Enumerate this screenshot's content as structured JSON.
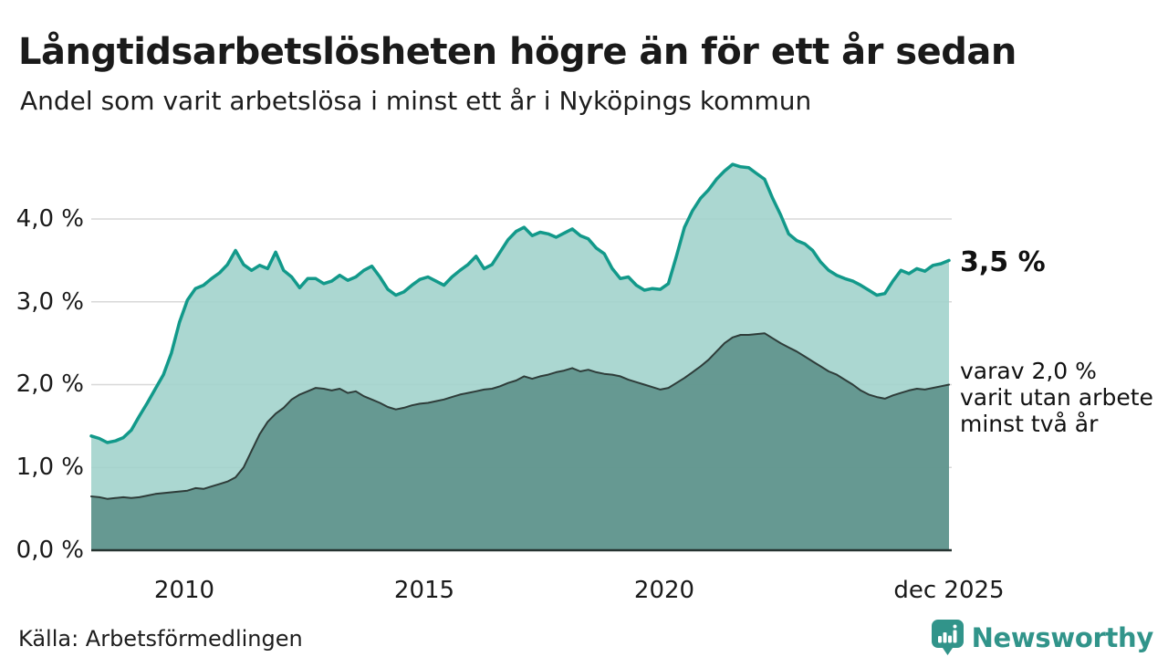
{
  "header": {
    "title": "Långtidsarbetslösheten högre än för ett år sedan",
    "subtitle": "Andel som varit arbetslösa i minst ett år i Nyköpings kommun"
  },
  "footer": {
    "source": "Källa: Arbetsförmedlingen",
    "brand": "Newsworthy",
    "brand_color": "#31948a",
    "brand_icon": "bar-chart-speech-bubble-icon"
  },
  "chart_data": {
    "type": "area",
    "title": "Långtidsarbetslösheten högre än för ett år sedan",
    "subtitle": "Andel som varit arbetslösa i minst ett år i Nyköpings kommun",
    "unit": "%",
    "grid": "horizontal",
    "legend_position": "right-annotations",
    "ylim": [
      0,
      4.7
    ],
    "x_domain_years": [
      2008.083,
      2025.917
    ],
    "x_resolution": "every 2 months",
    "y_ticks": [
      {
        "label": "4,0 %",
        "value": 4.0
      },
      {
        "label": "3,0 %",
        "value": 3.0
      },
      {
        "label": "2,0 %",
        "value": 2.0
      },
      {
        "label": "1,0 %",
        "value": 1.0
      },
      {
        "label": "0,0 %",
        "value": 0.0
      }
    ],
    "x_ticks": [
      {
        "label": "2010",
        "value": 2010
      },
      {
        "label": "2015",
        "value": 2015
      },
      {
        "label": "2020",
        "value": 2020
      },
      {
        "label": "dec 2025",
        "value": 2025.917
      }
    ],
    "colors": {
      "gridline": "#d8d8d8",
      "axis_line": "#263330"
    },
    "series": [
      {
        "name": "Arbetslösa minst ett år",
        "end_label": "3,5 %",
        "end_value": 3.5,
        "line_color": "#12998a",
        "fill_color": "#9fd2cb",
        "line_width": 3.5,
        "x_start": 2008.083,
        "x_step": 0.16667,
        "values": [
          1.38,
          1.35,
          1.3,
          1.32,
          1.36,
          1.45,
          1.62,
          1.78,
          1.95,
          2.12,
          2.38,
          2.75,
          3.02,
          3.16,
          3.2,
          3.28,
          3.35,
          3.45,
          3.62,
          3.45,
          3.38,
          3.44,
          3.4,
          3.6,
          3.38,
          3.3,
          3.17,
          3.28,
          3.28,
          3.22,
          3.25,
          3.32,
          3.26,
          3.3,
          3.38,
          3.43,
          3.3,
          3.15,
          3.08,
          3.12,
          3.2,
          3.27,
          3.3,
          3.25,
          3.2,
          3.3,
          3.38,
          3.45,
          3.55,
          3.4,
          3.45,
          3.6,
          3.75,
          3.85,
          3.9,
          3.8,
          3.84,
          3.82,
          3.78,
          3.83,
          3.88,
          3.8,
          3.76,
          3.65,
          3.58,
          3.4,
          3.28,
          3.3,
          3.2,
          3.14,
          3.16,
          3.15,
          3.22,
          3.55,
          3.9,
          4.1,
          4.25,
          4.35,
          4.48,
          4.58,
          4.66,
          4.63,
          4.62,
          4.55,
          4.48,
          4.25,
          4.05,
          3.82,
          3.74,
          3.7,
          3.62,
          3.48,
          3.38,
          3.32,
          3.28,
          3.25,
          3.2,
          3.14,
          3.08,
          3.1,
          3.25,
          3.38,
          3.34,
          3.4,
          3.37,
          3.44,
          3.46,
          3.5
        ]
      },
      {
        "name": "varav utan arbete minst två år",
        "end_label": "varav 2,0 %\nvarit utan arbete\nminst två år",
        "end_value": 2.0,
        "line_color": "#2e3c39",
        "fill_color": "#5f948c",
        "line_width": 2,
        "x_start": 2008.083,
        "x_step": 0.16667,
        "values": [
          0.65,
          0.64,
          0.62,
          0.63,
          0.64,
          0.63,
          0.64,
          0.66,
          0.68,
          0.69,
          0.7,
          0.71,
          0.72,
          0.75,
          0.74,
          0.77,
          0.8,
          0.83,
          0.88,
          1.0,
          1.2,
          1.4,
          1.55,
          1.65,
          1.72,
          1.82,
          1.88,
          1.92,
          1.96,
          1.95,
          1.93,
          1.95,
          1.9,
          1.92,
          1.86,
          1.82,
          1.78,
          1.73,
          1.7,
          1.72,
          1.75,
          1.77,
          1.78,
          1.8,
          1.82,
          1.85,
          1.88,
          1.9,
          1.92,
          1.94,
          1.95,
          1.98,
          2.02,
          2.05,
          2.1,
          2.07,
          2.1,
          2.12,
          2.15,
          2.17,
          2.2,
          2.16,
          2.18,
          2.15,
          2.13,
          2.12,
          2.1,
          2.06,
          2.03,
          2.0,
          1.97,
          1.94,
          1.96,
          2.02,
          2.08,
          2.15,
          2.22,
          2.3,
          2.4,
          2.5,
          2.57,
          2.6,
          2.6,
          2.61,
          2.62,
          2.56,
          2.5,
          2.45,
          2.4,
          2.34,
          2.28,
          2.22,
          2.16,
          2.12,
          2.06,
          2.0,
          1.93,
          1.88,
          1.85,
          1.83,
          1.87,
          1.9,
          1.93,
          1.95,
          1.94,
          1.96,
          1.98,
          2.0
        ]
      }
    ]
  }
}
